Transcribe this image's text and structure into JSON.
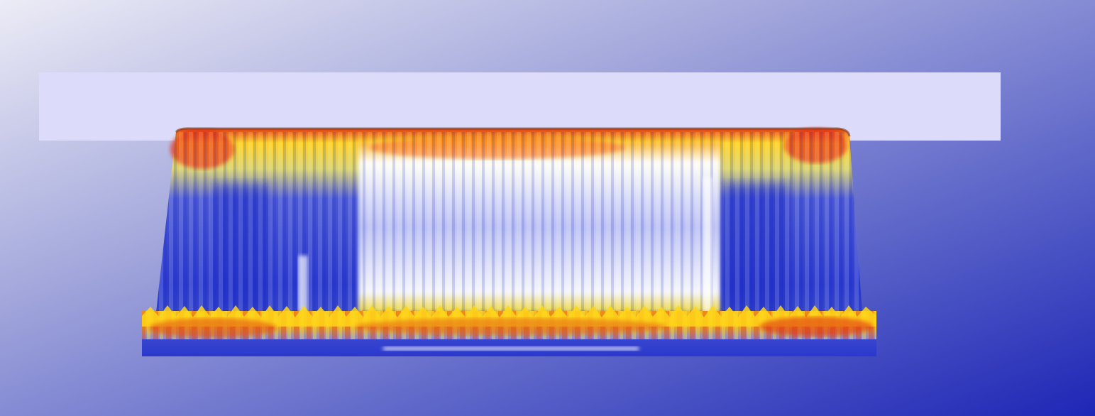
{
  "scene": {
    "subject": "3d-rendered-heat-sink-field",
    "background_colors": {
      "top_left": "#e8e8f4",
      "bottom_right": "#1f27b8"
    },
    "plate_color": "#dcdcfa",
    "colormap": [
      "#2233cc",
      "#6f7fe0",
      "#ffffff",
      "#ffe31a",
      "#ff9a10",
      "#e22a10"
    ]
  }
}
